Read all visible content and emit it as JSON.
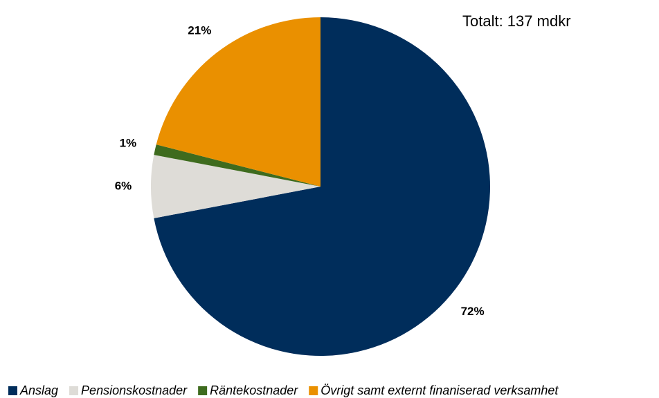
{
  "chart_data": {
    "type": "pie",
    "annotation": "Totalt:  137 mdkr",
    "categories": [
      "Anslag",
      "Pensionskostnader",
      "Räntekostnader",
      "Övrigt samt externt finaniserad verksamhet"
    ],
    "values": [
      72,
      6,
      1,
      21
    ],
    "value_labels": [
      "72%",
      "6%",
      "1%",
      "21%"
    ],
    "colors": [
      "#002d5b",
      "#dedcd7",
      "#3e6b1e",
      "#ea9000"
    ],
    "legend": "bottom"
  }
}
